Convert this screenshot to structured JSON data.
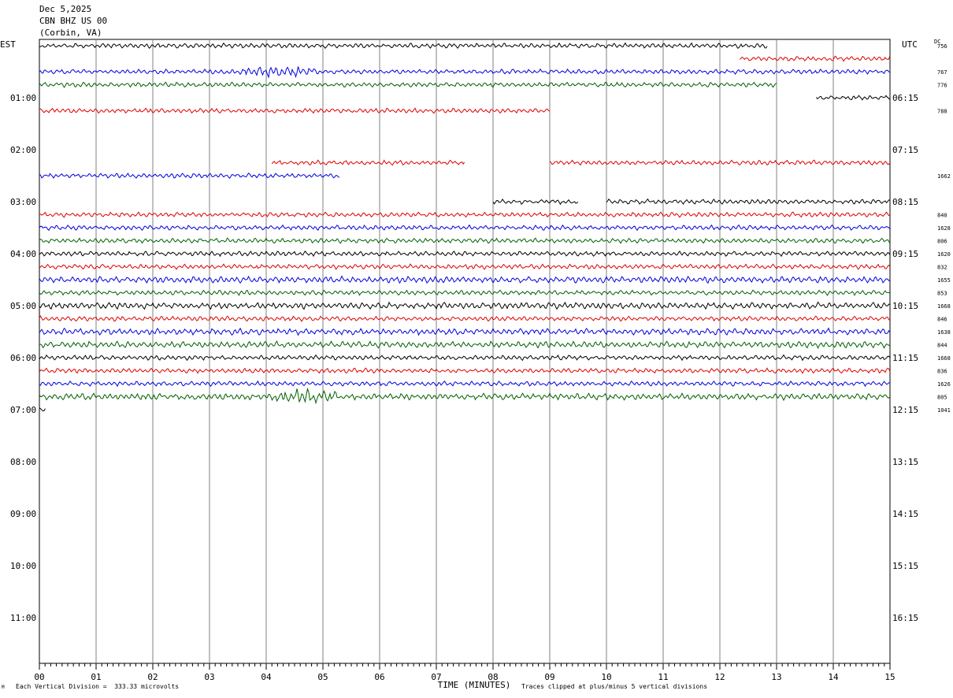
{
  "header": {
    "date": "Dec 5,2025",
    "station": "CBN BHZ US 00",
    "location": "(Corbin, VA)"
  },
  "left_tz": "EST",
  "right_tz": "UTC",
  "dc_label": "DC",
  "footer": {
    "vertical_division": "Each Vertical Division =  333.33 microvolts",
    "clip_note": "Traces clipped at plus/minus 5 vertical divisions",
    "corner_mark": "M"
  },
  "colors": {
    "black": "#000000",
    "red": "#e00000",
    "blue": "#0000e0",
    "green": "#006000",
    "grid": "#808080"
  },
  "chart_data": {
    "type": "line",
    "title": "",
    "xlabel": "TIME (MINUTES)",
    "ylabel": "",
    "xlim": [
      0,
      15
    ],
    "x_ticks": [
      "00",
      "01",
      "02",
      "03",
      "04",
      "05",
      "06",
      "07",
      "08",
      "09",
      "10",
      "11",
      "12",
      "13",
      "14",
      "15"
    ],
    "left_hour_labels": [
      "01:00",
      "02:00",
      "03:00",
      "04:00",
      "05:00",
      "06:00",
      "07:00",
      "08:00",
      "09:00",
      "10:00",
      "11:00"
    ],
    "right_hour_labels": [
      "06:15",
      "07:15",
      "08:15",
      "09:15",
      "10:15",
      "11:15",
      "12:15",
      "13:15",
      "14:15",
      "15:15",
      "16:15"
    ],
    "traces_per_hour": 4,
    "series": [
      {
        "row": 0,
        "color": "black",
        "dc": "756",
        "segments": [
          [
            0,
            12.85
          ]
        ],
        "amp": 3
      },
      {
        "row": 0,
        "color": "red",
        "dc": "",
        "segments": [
          [
            12.35,
            15
          ]
        ],
        "amp": 3,
        "offset": 1
      },
      {
        "row": 2,
        "color": "blue",
        "dc": "767",
        "segments": [
          [
            0,
            15
          ]
        ],
        "amp": 3,
        "burst": [
          3.3,
          5.1,
          5
        ]
      },
      {
        "row": 3,
        "color": "green",
        "dc": "776",
        "segments": [
          [
            0,
            13
          ]
        ],
        "amp": 3
      },
      {
        "row": 4,
        "color": "black",
        "dc": "",
        "segments": [
          [
            13.7,
            15
          ]
        ],
        "amp": 3
      },
      {
        "row": 5,
        "color": "red",
        "dc": "788",
        "segments": [
          [
            0,
            9
          ]
        ],
        "amp": 3
      },
      {
        "row": 9,
        "color": "red",
        "dc": "",
        "segments": [
          [
            4.1,
            7.5
          ],
          [
            9,
            15
          ]
        ],
        "amp": 3
      },
      {
        "row": 10,
        "color": "blue",
        "dc": "1662",
        "segments": [
          [
            0,
            5.3
          ]
        ],
        "amp": 3
      },
      {
        "row": 12,
        "color": "black",
        "dc": "",
        "segments": [
          [
            8,
            9.5
          ],
          [
            10,
            15
          ]
        ],
        "amp": 3
      },
      {
        "row": 13,
        "color": "red",
        "dc": "840",
        "segments": [
          [
            0,
            15
          ]
        ],
        "amp": 3
      },
      {
        "row": 14,
        "color": "blue",
        "dc": "1628",
        "segments": [
          [
            0,
            15
          ]
        ],
        "amp": 3
      },
      {
        "row": 15,
        "color": "green",
        "dc": "806",
        "segments": [
          [
            0,
            15
          ]
        ],
        "amp": 3
      },
      {
        "row": 16,
        "color": "black",
        "dc": "1620",
        "segments": [
          [
            0,
            15
          ]
        ],
        "amp": 3
      },
      {
        "row": 17,
        "color": "red",
        "dc": "832",
        "segments": [
          [
            0,
            15
          ]
        ],
        "amp": 3
      },
      {
        "row": 18,
        "color": "blue",
        "dc": "1655",
        "segments": [
          [
            0,
            15
          ]
        ],
        "amp": 4
      },
      {
        "row": 19,
        "color": "green",
        "dc": "853",
        "segments": [
          [
            0,
            15
          ]
        ],
        "amp": 3
      },
      {
        "row": 20,
        "color": "black",
        "dc": "1668",
        "segments": [
          [
            0,
            15
          ]
        ],
        "amp": 4
      },
      {
        "row": 21,
        "color": "red",
        "dc": "846",
        "segments": [
          [
            0,
            15
          ]
        ],
        "amp": 3
      },
      {
        "row": 22,
        "color": "blue",
        "dc": "1638",
        "segments": [
          [
            0,
            15
          ]
        ],
        "amp": 4
      },
      {
        "row": 23,
        "color": "green",
        "dc": "844",
        "segments": [
          [
            0,
            15
          ]
        ],
        "amp": 4
      },
      {
        "row": 24,
        "color": "black",
        "dc": "1668",
        "segments": [
          [
            0,
            15
          ]
        ],
        "amp": 3
      },
      {
        "row": 25,
        "color": "red",
        "dc": "836",
        "segments": [
          [
            0,
            15
          ]
        ],
        "amp": 3
      },
      {
        "row": 26,
        "color": "blue",
        "dc": "1626",
        "segments": [
          [
            0,
            15
          ]
        ],
        "amp": 3
      },
      {
        "row": 27,
        "color": "green",
        "dc": "805",
        "segments": [
          [
            0,
            15
          ]
        ],
        "amp": 4,
        "burst": [
          4,
          5.4,
          7
        ]
      },
      {
        "row": 28,
        "color": "black",
        "dc": "1041",
        "segments": [
          [
            0,
            0.12
          ]
        ],
        "amp": 3
      }
    ]
  }
}
